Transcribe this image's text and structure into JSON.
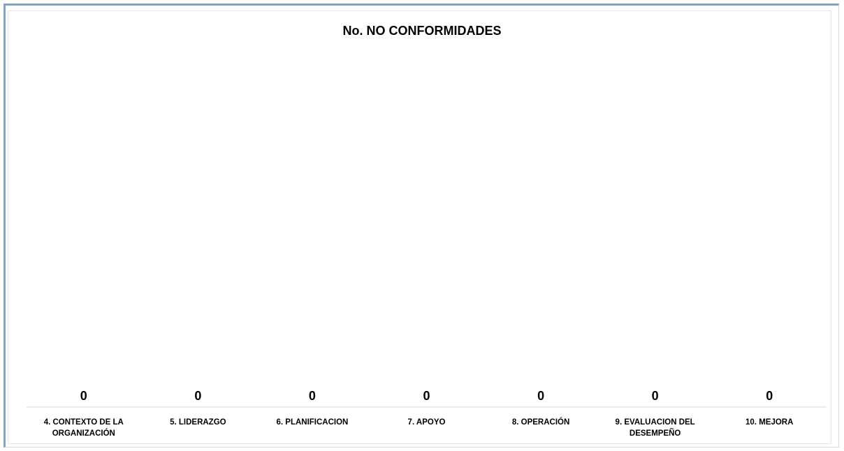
{
  "chart_data": {
    "type": "bar",
    "title": "No. NO CONFORMIDADES",
    "xlabel": "",
    "ylabel": "",
    "categories": [
      "4. CONTEXTO DE LA ORGANIZACIÓN",
      "5. LIDERAZGO",
      "6. PLANIFICACION",
      "7. APOYO",
      "8. OPERACIÓN",
      "9. EVALUACION DEL DESEMPEÑO",
      "10. MEJORA"
    ],
    "category_lines": [
      [
        "4. CONTEXTO DE LA",
        "ORGANIZACIÓN"
      ],
      [
        "5. LIDERAZGO"
      ],
      [
        "6. PLANIFICACION"
      ],
      [
        "7. APOYO"
      ],
      [
        "8. OPERACIÓN"
      ],
      [
        "9. EVALUACION DEL",
        "DESEMPEÑO"
      ],
      [
        "10. MEJORA"
      ]
    ],
    "values": [
      0,
      0,
      0,
      0,
      0,
      0,
      0
    ],
    "data_labels": [
      "0",
      "0",
      "0",
      "0",
      "0",
      "0",
      "0"
    ],
    "grid": false,
    "legend": "none",
    "colors": {
      "axis": "#d9d9d9",
      "frame_accent": "#7ea2d4",
      "bar": "#4472c4",
      "text": "#000000"
    }
  }
}
